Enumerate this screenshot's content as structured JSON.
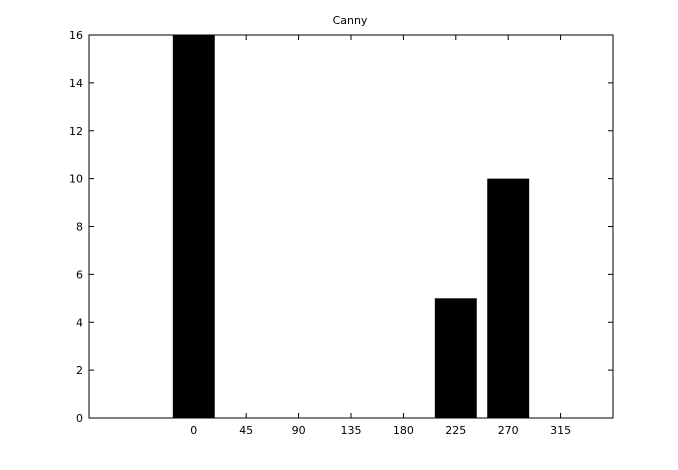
{
  "chart_data": {
    "type": "bar",
    "title": "Canny",
    "xlabel": "",
    "ylabel": "",
    "categories": [
      "0",
      "45",
      "90",
      "135",
      "180",
      "225",
      "270",
      "315"
    ],
    "x": [
      0,
      45,
      90,
      135,
      180,
      225,
      270,
      315
    ],
    "values": [
      16,
      0,
      0,
      0,
      0,
      5,
      10,
      0
    ],
    "xlim": [
      -90,
      360
    ],
    "ylim": [
      0,
      16
    ],
    "yticks": [
      0,
      2,
      4,
      6,
      8,
      10,
      12,
      14,
      16
    ],
    "grid": false,
    "legend": "none",
    "bar_color": "#000000",
    "axis_color": "#000000",
    "background": "#ffffff"
  }
}
